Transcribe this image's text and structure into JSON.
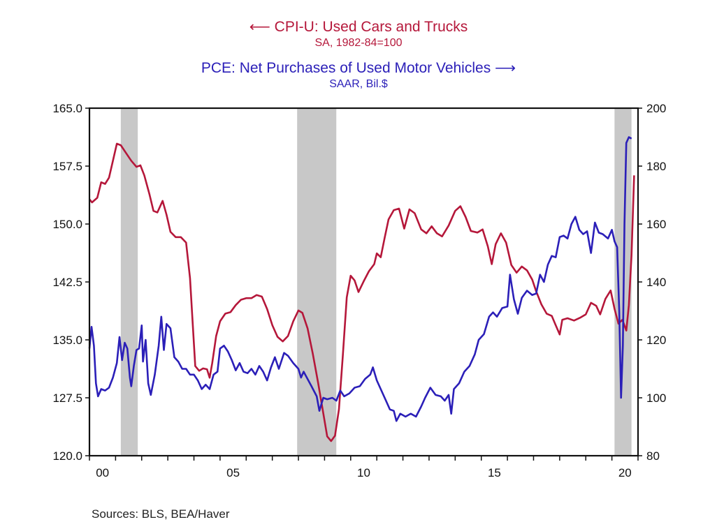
{
  "chart_data": {
    "type": "line",
    "title": "",
    "legend": [
      {
        "name": "CPI-U: Used Cars and Trucks",
        "subtitle": "SA, 1982-84=100",
        "axis": "left",
        "arrow": "left",
        "color": "#b5173a"
      },
      {
        "name": "PCE: Net Purchases of Used Motor Vehicles",
        "subtitle": "SAAR, Bil.$",
        "axis": "right",
        "arrow": "right",
        "color": "#2b1fb8"
      }
    ],
    "legend_placement": "top-center",
    "xlabel": "",
    "x_range": [
      2000,
      2021
    ],
    "x_tick_labels": [
      {
        "label": "00",
        "year": 2000
      },
      {
        "label": "05",
        "year": 2005
      },
      {
        "label": "10",
        "year": 2010
      },
      {
        "label": "15",
        "year": 2015
      },
      {
        "label": "20",
        "year": 2020
      }
    ],
    "y_left": {
      "label": "",
      "range": [
        120,
        165
      ],
      "ticks": [
        "120.0",
        "127.5",
        "135.0",
        "142.5",
        "150.0",
        "157.5",
        "165.0"
      ]
    },
    "y_right": {
      "label": "",
      "range": [
        80,
        200
      ],
      "ticks": [
        "80",
        "100",
        "120",
        "140",
        "160",
        "180",
        "200"
      ]
    },
    "grid": false,
    "recessions": [
      {
        "start": 2001.2,
        "end": 2001.85
      },
      {
        "start": 2007.95,
        "end": 2009.45
      },
      {
        "start": 2020.1,
        "end": 2020.75
      }
    ],
    "recession_color": "#c8c8c8",
    "series": [
      {
        "name": "CPI-U: Used Cars and Trucks",
        "axis": "left",
        "color": "#b5173a",
        "points": [
          [
            2000.0,
            153.2
          ],
          [
            2000.1,
            152.8
          ],
          [
            2000.3,
            153.4
          ],
          [
            2000.45,
            155.4
          ],
          [
            2000.6,
            155.2
          ],
          [
            2000.75,
            156.0
          ],
          [
            2000.9,
            158.2
          ],
          [
            2001.05,
            160.4
          ],
          [
            2001.2,
            160.2
          ],
          [
            2001.4,
            159.2
          ],
          [
            2001.6,
            158.2
          ],
          [
            2001.8,
            157.4
          ],
          [
            2001.95,
            157.6
          ],
          [
            2002.1,
            156.3
          ],
          [
            2002.3,
            153.8
          ],
          [
            2002.45,
            151.7
          ],
          [
            2002.6,
            151.5
          ],
          [
            2002.8,
            153.0
          ],
          [
            2002.95,
            151.2
          ],
          [
            2003.1,
            149.0
          ],
          [
            2003.3,
            148.3
          ],
          [
            2003.5,
            148.3
          ],
          [
            2003.7,
            147.6
          ],
          [
            2003.85,
            143.0
          ],
          [
            2003.95,
            137.2
          ],
          [
            2004.05,
            131.6
          ],
          [
            2004.2,
            131.0
          ],
          [
            2004.35,
            131.3
          ],
          [
            2004.5,
            131.2
          ],
          [
            2004.6,
            130.1
          ],
          [
            2004.7,
            132.0
          ],
          [
            2004.85,
            135.5
          ],
          [
            2005.0,
            137.4
          ],
          [
            2005.2,
            138.4
          ],
          [
            2005.4,
            138.6
          ],
          [
            2005.6,
            139.5
          ],
          [
            2005.8,
            140.2
          ],
          [
            2006.0,
            140.4
          ],
          [
            2006.2,
            140.4
          ],
          [
            2006.4,
            140.8
          ],
          [
            2006.6,
            140.6
          ],
          [
            2006.8,
            139.0
          ],
          [
            2007.0,
            136.9
          ],
          [
            2007.2,
            135.4
          ],
          [
            2007.4,
            134.8
          ],
          [
            2007.6,
            135.5
          ],
          [
            2007.8,
            137.4
          ],
          [
            2008.0,
            138.8
          ],
          [
            2008.15,
            138.5
          ],
          [
            2008.35,
            136.5
          ],
          [
            2008.55,
            133.2
          ],
          [
            2008.75,
            129.5
          ],
          [
            2008.95,
            125.5
          ],
          [
            2009.1,
            122.5
          ],
          [
            2009.25,
            121.9
          ],
          [
            2009.4,
            122.6
          ],
          [
            2009.55,
            126.0
          ],
          [
            2009.7,
            133.0
          ],
          [
            2009.85,
            140.5
          ],
          [
            2010.0,
            143.3
          ],
          [
            2010.15,
            142.7
          ],
          [
            2010.3,
            141.2
          ],
          [
            2010.5,
            142.6
          ],
          [
            2010.7,
            143.9
          ],
          [
            2010.9,
            144.8
          ],
          [
            2011.0,
            146.2
          ],
          [
            2011.15,
            145.7
          ],
          [
            2011.3,
            148.2
          ],
          [
            2011.45,
            150.6
          ],
          [
            2011.65,
            151.8
          ],
          [
            2011.85,
            152.0
          ],
          [
            2012.05,
            149.4
          ],
          [
            2012.25,
            151.9
          ],
          [
            2012.45,
            151.4
          ],
          [
            2012.7,
            149.3
          ],
          [
            2012.9,
            148.8
          ],
          [
            2013.1,
            149.7
          ],
          [
            2013.3,
            148.8
          ],
          [
            2013.5,
            148.4
          ],
          [
            2013.75,
            149.8
          ],
          [
            2014.0,
            151.7
          ],
          [
            2014.2,
            152.3
          ],
          [
            2014.4,
            150.9
          ],
          [
            2014.6,
            149.1
          ],
          [
            2014.85,
            148.9
          ],
          [
            2015.05,
            149.3
          ],
          [
            2015.25,
            147.1
          ],
          [
            2015.4,
            144.8
          ],
          [
            2015.55,
            147.4
          ],
          [
            2015.75,
            148.8
          ],
          [
            2015.95,
            147.6
          ],
          [
            2016.15,
            144.7
          ],
          [
            2016.35,
            143.7
          ],
          [
            2016.55,
            144.5
          ],
          [
            2016.75,
            144.0
          ],
          [
            2016.95,
            142.8
          ],
          [
            2017.1,
            141.3
          ],
          [
            2017.3,
            139.6
          ],
          [
            2017.5,
            138.4
          ],
          [
            2017.7,
            138.1
          ],
          [
            2017.85,
            136.9
          ],
          [
            2018.0,
            135.7
          ],
          [
            2018.1,
            137.6
          ],
          [
            2018.3,
            137.8
          ],
          [
            2018.55,
            137.5
          ],
          [
            2018.8,
            137.9
          ],
          [
            2019.0,
            138.3
          ],
          [
            2019.2,
            139.8
          ],
          [
            2019.4,
            139.4
          ],
          [
            2019.55,
            138.3
          ],
          [
            2019.75,
            140.3
          ],
          [
            2019.95,
            141.4
          ],
          [
            2020.1,
            139.0
          ],
          [
            2020.25,
            137.1
          ],
          [
            2020.4,
            137.6
          ],
          [
            2020.55,
            136.2
          ],
          [
            2020.65,
            139.5
          ],
          [
            2020.75,
            146.0
          ],
          [
            2020.85,
            156.3
          ]
        ]
      },
      {
        "name": "PCE: Net Purchases of Used Motor Vehicles",
        "axis": "right",
        "color": "#2b1fb8",
        "points": [
          [
            2000.0,
            117.0
          ],
          [
            2000.08,
            124.5
          ],
          [
            2000.17,
            118.0
          ],
          [
            2000.25,
            105.0
          ],
          [
            2000.33,
            100.5
          ],
          [
            2000.45,
            103.0
          ],
          [
            2000.6,
            102.5
          ],
          [
            2000.75,
            103.5
          ],
          [
            2000.9,
            107.0
          ],
          [
            2001.05,
            112.0
          ],
          [
            2001.15,
            121.0
          ],
          [
            2001.25,
            113.0
          ],
          [
            2001.35,
            119.0
          ],
          [
            2001.45,
            117.0
          ],
          [
            2001.55,
            107.0
          ],
          [
            2001.6,
            104.0
          ],
          [
            2001.7,
            111.0
          ],
          [
            2001.8,
            116.5
          ],
          [
            2001.9,
            117.0
          ],
          [
            2002.0,
            125.0
          ],
          [
            2002.05,
            112.5
          ],
          [
            2002.15,
            120.0
          ],
          [
            2002.25,
            105.0
          ],
          [
            2002.35,
            101.0
          ],
          [
            2002.5,
            108.0
          ],
          [
            2002.65,
            118.0
          ],
          [
            2002.75,
            128.0
          ],
          [
            2002.85,
            116.5
          ],
          [
            2002.95,
            125.5
          ],
          [
            2003.1,
            124.0
          ],
          [
            2003.25,
            114.0
          ],
          [
            2003.4,
            112.5
          ],
          [
            2003.55,
            110.0
          ],
          [
            2003.7,
            110.0
          ],
          [
            2003.85,
            108.0
          ],
          [
            2004.0,
            108.0
          ],
          [
            2004.15,
            106.0
          ],
          [
            2004.3,
            103.0
          ],
          [
            2004.45,
            104.5
          ],
          [
            2004.6,
            103.0
          ],
          [
            2004.75,
            108.0
          ],
          [
            2004.9,
            109.0
          ],
          [
            2005.0,
            117.0
          ],
          [
            2005.15,
            118.0
          ],
          [
            2005.3,
            116.0
          ],
          [
            2005.45,
            113.0
          ],
          [
            2005.6,
            109.5
          ],
          [
            2005.75,
            112.0
          ],
          [
            2005.9,
            109.0
          ],
          [
            2006.05,
            108.5
          ],
          [
            2006.2,
            110.0
          ],
          [
            2006.35,
            108.0
          ],
          [
            2006.5,
            111.0
          ],
          [
            2006.65,
            109.0
          ],
          [
            2006.8,
            106.0
          ],
          [
            2006.95,
            110.5
          ],
          [
            2007.1,
            114.0
          ],
          [
            2007.25,
            110.0
          ],
          [
            2007.45,
            115.5
          ],
          [
            2007.6,
            114.5
          ],
          [
            2007.8,
            112.0
          ],
          [
            2008.0,
            110.0
          ],
          [
            2008.1,
            107.0
          ],
          [
            2008.2,
            109.0
          ],
          [
            2008.35,
            106.5
          ],
          [
            2008.5,
            104.0
          ],
          [
            2008.7,
            100.5
          ],
          [
            2008.8,
            95.5
          ],
          [
            2008.95,
            100.0
          ],
          [
            2009.1,
            99.5
          ],
          [
            2009.3,
            100.0
          ],
          [
            2009.45,
            99.0
          ],
          [
            2009.6,
            102.5
          ],
          [
            2009.75,
            100.5
          ],
          [
            2009.95,
            101.5
          ],
          [
            2010.15,
            103.5
          ],
          [
            2010.35,
            104.0
          ],
          [
            2010.55,
            106.5
          ],
          [
            2010.75,
            108.0
          ],
          [
            2010.85,
            110.5
          ],
          [
            2011.0,
            106.0
          ],
          [
            2011.15,
            103.0
          ],
          [
            2011.35,
            99.0
          ],
          [
            2011.5,
            96.0
          ],
          [
            2011.65,
            95.5
          ],
          [
            2011.75,
            92.0
          ],
          [
            2011.9,
            94.5
          ],
          [
            2012.1,
            93.5
          ],
          [
            2012.3,
            94.5
          ],
          [
            2012.5,
            93.5
          ],
          [
            2012.7,
            97.0
          ],
          [
            2012.85,
            100.0
          ],
          [
            2013.05,
            103.5
          ],
          [
            2013.25,
            101.0
          ],
          [
            2013.45,
            100.5
          ],
          [
            2013.6,
            99.0
          ],
          [
            2013.75,
            101.0
          ],
          [
            2013.85,
            94.5
          ],
          [
            2013.95,
            103.0
          ],
          [
            2014.15,
            105.0
          ],
          [
            2014.35,
            109.0
          ],
          [
            2014.55,
            111.0
          ],
          [
            2014.75,
            115.0
          ],
          [
            2014.9,
            120.0
          ],
          [
            2015.1,
            122.0
          ],
          [
            2015.3,
            128.0
          ],
          [
            2015.45,
            129.5
          ],
          [
            2015.6,
            128.0
          ],
          [
            2015.8,
            131.0
          ],
          [
            2016.0,
            131.5
          ],
          [
            2016.1,
            142.5
          ],
          [
            2016.25,
            134.0
          ],
          [
            2016.4,
            129.0
          ],
          [
            2016.55,
            134.5
          ],
          [
            2016.75,
            137.0
          ],
          [
            2016.95,
            135.5
          ],
          [
            2017.1,
            136.0
          ],
          [
            2017.25,
            142.5
          ],
          [
            2017.4,
            140.0
          ],
          [
            2017.55,
            146.0
          ],
          [
            2017.7,
            149.0
          ],
          [
            2017.85,
            148.5
          ],
          [
            2018.0,
            155.5
          ],
          [
            2018.15,
            156.0
          ],
          [
            2018.3,
            155.0
          ],
          [
            2018.45,
            160.0
          ],
          [
            2018.6,
            162.5
          ],
          [
            2018.75,
            158.0
          ],
          [
            2018.9,
            156.5
          ],
          [
            2019.05,
            157.5
          ],
          [
            2019.2,
            150.0
          ],
          [
            2019.35,
            160.5
          ],
          [
            2019.5,
            157.0
          ],
          [
            2019.65,
            156.5
          ],
          [
            2019.85,
            155.0
          ],
          [
            2020.0,
            158.0
          ],
          [
            2020.1,
            154.0
          ],
          [
            2020.2,
            152.0
          ],
          [
            2020.28,
            130.0
          ],
          [
            2020.35,
            100.0
          ],
          [
            2020.42,
            118.0
          ],
          [
            2020.48,
            160.0
          ],
          [
            2020.55,
            188.0
          ],
          [
            2020.65,
            190.0
          ],
          [
            2020.75,
            189.5
          ]
        ]
      }
    ]
  },
  "footer": {
    "sources": "Sources:  BLS, BEA/Haver"
  },
  "legend_text": {
    "cpi_title": "CPI-U: Used Cars and Trucks",
    "cpi_subtitle": "SA, 1982-84=100",
    "pce_title": "PCE: Net Purchases of Used Motor Vehicles",
    "pce_subtitle": "SAAR, Bil.$",
    "left_arrow": "⟵",
    "right_arrow": "⟶"
  }
}
